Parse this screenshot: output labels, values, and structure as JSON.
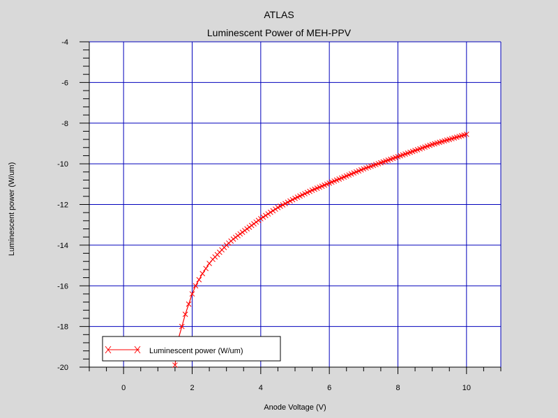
{
  "chart_data": {
    "type": "line",
    "title": "ATLAS",
    "subtitle": "Luminescent Power of MEH-PPV",
    "xlabel": "Anode Voltage (V)",
    "ylabel": "Luminescent power (W/um)",
    "xlim": [
      -1,
      11
    ],
    "ylim": [
      -20,
      -4
    ],
    "x_ticks": [
      0,
      2,
      4,
      6,
      8,
      10
    ],
    "x_tick_labels": [
      "0",
      "2",
      "4",
      "6",
      "8",
      "10"
    ],
    "y_ticks": [
      -4,
      -6,
      -8,
      -10,
      -12,
      -14,
      -16,
      -18,
      -20
    ],
    "y_tick_labels": [
      "-4",
      "-6",
      "-8",
      "-10",
      "-12",
      "-14",
      "-16",
      "-18",
      "-20"
    ],
    "grid": true,
    "legend_position": "bottom-left",
    "colors": {
      "background": "#d9d9d9",
      "plot_bg": "#ffffff",
      "grid": "#0000bb",
      "series": "#ff0000",
      "axis": "#000000"
    },
    "series": [
      {
        "name": "Luminescent power (W/um)",
        "x": [
          1.5,
          1.6,
          1.7,
          1.8,
          1.9,
          2.0,
          2.1,
          2.2,
          2.3,
          2.4,
          2.5,
          2.6,
          2.8,
          3.0,
          3.2,
          3.4,
          3.6,
          3.8,
          4.0,
          4.5,
          5.0,
          5.5,
          6.0,
          6.5,
          7.0,
          7.5,
          8.0,
          8.5,
          9.0,
          9.5,
          10.0
        ],
        "y": [
          -19.9,
          -18.6,
          -18.0,
          -17.4,
          -16.9,
          -16.4,
          -16.0,
          -15.7,
          -15.4,
          -15.15,
          -14.9,
          -14.7,
          -14.35,
          -14.0,
          -13.7,
          -13.45,
          -13.2,
          -12.95,
          -12.7,
          -12.15,
          -11.7,
          -11.3,
          -10.95,
          -10.6,
          -10.25,
          -9.95,
          -9.65,
          -9.35,
          -9.05,
          -8.8,
          -8.55
        ]
      }
    ]
  }
}
